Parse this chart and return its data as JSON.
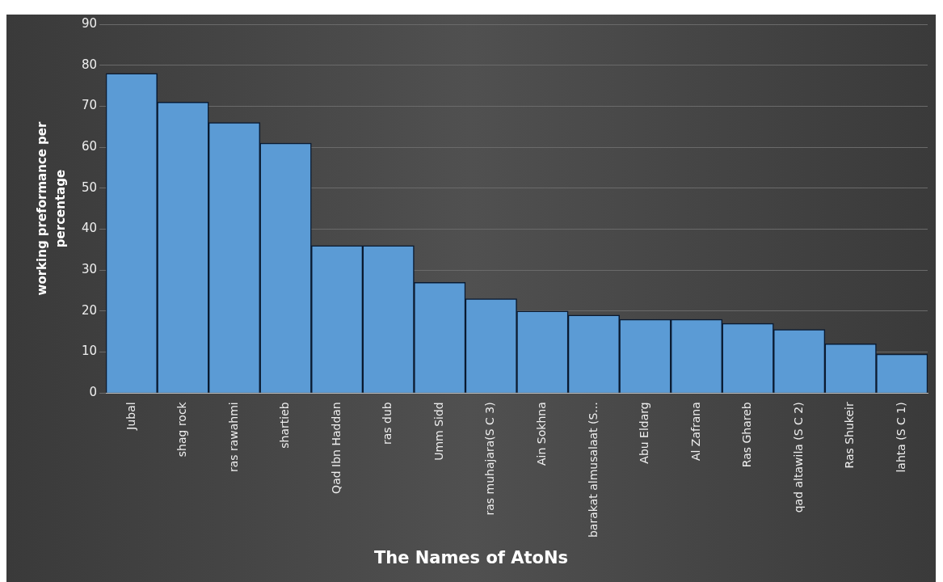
{
  "chart_data": {
    "type": "bar",
    "xlabel": "The Names of AtoNs",
    "ylabel": "working preformance per percentage",
    "categories": [
      "Jubal",
      "shag rock",
      "ras rawahmi",
      "shartieb",
      "Qad Ibn Haddan",
      "ras dub",
      "Umm Sidd",
      "ras muhajara(S C 3)",
      "Ain Sokhna",
      "barakat almusalaat (S...",
      "Abu Eldarg",
      "Al Zafrana",
      "Ras Ghareb",
      "qad altawila (S C 2)",
      "Ras Shukeir",
      "lahta (S C 1)"
    ],
    "values": [
      78,
      71,
      66,
      61,
      36,
      36,
      27,
      23,
      20,
      19,
      18,
      18,
      17,
      15.5,
      12,
      9.5
    ],
    "color": "#5b9bd5",
    "ylim": [
      0,
      90
    ],
    "yticks": [
      0,
      10,
      20,
      30,
      40,
      50,
      60,
      70,
      80,
      90
    ],
    "grid": "y"
  }
}
